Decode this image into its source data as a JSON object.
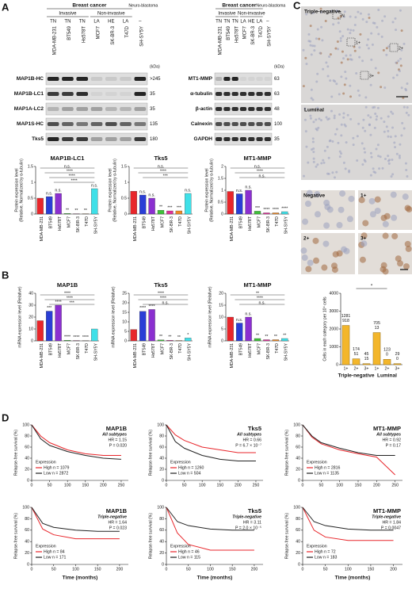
{
  "panel_labels": [
    "A",
    "B",
    "C",
    "D"
  ],
  "blot_left": {
    "group_headers": [
      "Breast cancer",
      "Neuro-blastoma"
    ],
    "subgroup_headers": [
      "Invasive",
      "Non-invasive"
    ],
    "subtypes": [
      "TN",
      "TN",
      "TN",
      "LA",
      "HE",
      "LA",
      "–"
    ],
    "cell_lines": [
      "MDA-MB-231",
      "BT549",
      "Hs578T",
      "MCF7",
      "SK-BR-3",
      "T47D",
      "SH-SY5Y"
    ],
    "kda_label": "(kDa)",
    "bands": [
      {
        "name": "MAP1B-HC",
        "kda": ">245"
      },
      {
        "name": "MAP1B-LC1",
        "kda": "35"
      },
      {
        "name": "MAP1A-LC2",
        "kda": "35"
      },
      {
        "name": "MAP1S-HC",
        "kda": "135"
      },
      {
        "name": "Tks5",
        "kda": "180"
      }
    ]
  },
  "blot_right": {
    "group_headers": [
      "Breast cancer",
      "Neuro-blastoma"
    ],
    "subgroup_headers": [
      "Invasive",
      "Non-invasive"
    ],
    "subtypes": [
      "TN",
      "TN",
      "TN",
      "LA",
      "HE",
      "LA",
      "–"
    ],
    "cell_lines": [
      "MDA-MB-231",
      "BT549",
      "Hs578T",
      "MCF7",
      "SK-BR-3",
      "T47D",
      "SH-SY5Y"
    ],
    "kda_label": "(kDa)",
    "bands": [
      {
        "name": "MT1-MMP",
        "kda": "63"
      },
      {
        "name": "α-tubulin",
        "kda": "63"
      },
      {
        "name": "β-actin",
        "kda": "48"
      },
      {
        "name": "Calnexin",
        "kda": "100"
      },
      {
        "name": "GAPDH",
        "kda": "35"
      }
    ]
  },
  "ihc": {
    "main_labels": [
      "Triple-negative",
      "Luminal"
    ],
    "box_labels": [
      "N",
      "1+",
      "2+",
      "3+"
    ],
    "tile_labels": [
      "Negative",
      "1+",
      "2+",
      "3+"
    ]
  },
  "chart_data": [
    {
      "type": "bar",
      "title": "MAP1B-LC1",
      "ylabel": [
        "Protein expression level",
        "(Relative, Normalized by α-tubulin)"
      ],
      "categories": [
        "MDA-MB-231",
        "BT549",
        "Hs578T",
        "MCF7",
        "SK-BR-3",
        "T47D",
        "SH-SY5Y"
      ],
      "values": [
        0.5,
        0.55,
        0.65,
        0.02,
        0.01,
        0.01,
        0.8
      ],
      "colors": [
        "#e8262b",
        "#2a3ed6",
        "#8b2fd0",
        "#3fc23a",
        "#e0309a",
        "#f08a24",
        "#3fe0e8"
      ],
      "ylim": [
        0,
        1.5
      ],
      "yticks": [
        0,
        0.5,
        1,
        1.5
      ],
      "annotations": [
        null,
        "n.s.",
        "n.s.",
        "**",
        "**",
        "**",
        "n.s."
      ],
      "brackets": [
        "n.s.",
        "****",
        "****",
        "****"
      ]
    },
    {
      "type": "bar",
      "title": "Tks5",
      "ylabel": [
        "Protein expression level",
        "(Relative, Normalized by α-tubulin)"
      ],
      "categories": [
        "MDA-MB-231",
        "BT549",
        "Hs578T",
        "MCF7",
        "SK-BR-3",
        "T47D",
        "SH-SY5Y"
      ],
      "values": [
        0.72,
        0.6,
        0.5,
        0.12,
        0.1,
        0.1,
        0.65
      ],
      "colors": [
        "#e8262b",
        "#2a3ed6",
        "#8b2fd0",
        "#3fc23a",
        "#e0309a",
        "#f08a24",
        "#3fe0e8"
      ],
      "ylim": [
        0,
        1.5
      ],
      "yticks": [
        0,
        0.5,
        1,
        1.5
      ],
      "annotations": [
        null,
        "n.s.",
        "n.s.",
        "**",
        "***",
        "***",
        "n.s."
      ],
      "brackets": [
        "n.s.",
        "****",
        "***"
      ]
    },
    {
      "type": "bar",
      "title": "MT1-MMP",
      "ylabel": [
        "Protein expression level",
        "(Relative, Normalized by α-tubulin)"
      ],
      "categories": [
        "MDA-MB-231",
        "BT549",
        "Hs578T",
        "MCF7",
        "SK-BR-3",
        "T47D",
        "SH-SY5Y"
      ],
      "values": [
        0.95,
        0.85,
        1.0,
        0.12,
        0.05,
        0.05,
        0.1
      ],
      "colors": [
        "#e8262b",
        "#2a3ed6",
        "#8b2fd0",
        "#3fc23a",
        "#e0309a",
        "#f08a24",
        "#3fe0e8"
      ],
      "ylim": [
        0,
        2
      ],
      "yticks": [
        0,
        0.5,
        1,
        1.5,
        2
      ],
      "annotations": [
        null,
        "n.s.",
        "n.s.",
        "***",
        "****",
        "****",
        "****"
      ],
      "brackets": [
        "n.s.",
        "****",
        "n.s."
      ]
    },
    {
      "type": "bar",
      "title": "MAP1B",
      "ylabel": "mRNA expression level (Relative)",
      "categories": [
        "MDA-MB-231",
        "BT549",
        "Hs578T",
        "MCF7",
        "SK-BR-3",
        "T47D",
        "SH-SY5Y"
      ],
      "values": [
        17,
        25,
        30,
        0.5,
        0.3,
        0.2,
        10
      ],
      "colors": [
        "#e8262b",
        "#2a3ed6",
        "#8b2fd0",
        "#3fc23a",
        "#e0309a",
        "#f08a24",
        "#3fe0e8"
      ],
      "ylim": [
        0,
        40
      ],
      "yticks": [
        0,
        10,
        20,
        30,
        40
      ],
      "annotations": [
        null,
        "***",
        "****",
        "****",
        "****",
        "****",
        null
      ],
      "brackets": [
        "****",
        "****",
        "***"
      ]
    },
    {
      "type": "bar",
      "title": "Tks5",
      "ylabel": "mRNA expression level (Relative)",
      "categories": [
        "MDA-MB-231",
        "BT549",
        "Hs578T",
        "MCF7",
        "SK-BR-3",
        "T47D",
        "SH-SY5Y"
      ],
      "values": [
        6,
        15.5,
        16.5,
        0.5,
        0.3,
        0.2,
        1.5
      ],
      "colors": [
        "#e8262b",
        "#2a3ed6",
        "#8b2fd0",
        "#3fc23a",
        "#e0309a",
        "#f08a24",
        "#3fe0e8"
      ],
      "ylim": [
        0,
        25
      ],
      "yticks": [
        0,
        5,
        10,
        15,
        20,
        25
      ],
      "annotations": [
        null,
        "****",
        "****",
        "**",
        "**",
        "**",
        "*"
      ],
      "brackets": [
        "****",
        "****",
        "n.s."
      ]
    },
    {
      "type": "bar",
      "title": "MT1-MMP",
      "ylabel": "mRNA expression level (Relative)",
      "categories": [
        "MDA-MB-231",
        "BT549",
        "Hs578T",
        "MCF7",
        "SK-BR-3",
        "T47D",
        "SH-SY5Y"
      ],
      "values": [
        10,
        7.5,
        10,
        1,
        0.5,
        0.5,
        1
      ],
      "colors": [
        "#e8262b",
        "#2a3ed6",
        "#8b2fd0",
        "#3fc23a",
        "#e0309a",
        "#f08a24",
        "#3fe0e8"
      ],
      "ylim": [
        0,
        20
      ],
      "yticks": [
        0,
        5,
        10,
        15,
        20
      ],
      "annotations": [
        null,
        "n.s.",
        "n.s.",
        "**",
        "**",
        "**",
        "**"
      ],
      "brackets": [
        "**",
        "****",
        "n.s."
      ]
    },
    {
      "type": "bar",
      "ylabel": "Cells in each category per 10⁴ cells",
      "color": "#f3b62b",
      "ylim": [
        0,
        4000
      ],
      "yticks": [
        0,
        1000,
        2000,
        3000,
        4000
      ],
      "brackets": [
        "*"
      ],
      "groups": [
        {
          "name": "Triple-negative",
          "categories": [
            "1+",
            "2+",
            "3+"
          ],
          "values": [
            2200,
            330,
            60
          ],
          "annotations": [
            [
              "1281",
              "918"
            ],
            [
              "174",
              "51"
            ],
            [
              "45",
              "15"
            ]
          ]
        },
        {
          "name": "Luminal",
          "categories": [
            "1+",
            "2+",
            "3+"
          ],
          "values": [
            1800,
            300,
            60
          ],
          "annotations": [
            [
              "705",
              "13"
            ],
            [
              "123",
              "0"
            ],
            [
              "29",
              "0"
            ]
          ]
        }
      ]
    },
    {
      "type": "line",
      "title": "MAP1B",
      "subtitle": "All subtypes",
      "hr": "HR = 1.15",
      "p": "P = 0.020",
      "ylabel": "Relapse-free survival (%)",
      "legend_title": "Expression",
      "x": [
        0,
        25,
        50,
        100,
        150,
        200,
        250
      ],
      "series": [
        {
          "name": "High n = 1079",
          "color": "#e8262b",
          "values": [
            100,
            80,
            68,
            55,
            48,
            45,
            45
          ]
        },
        {
          "name": "Low n = 2872",
          "color": "#222222",
          "values": [
            100,
            75,
            63,
            52,
            45,
            40,
            38
          ]
        }
      ],
      "xlim": [
        0,
        270
      ],
      "xticks": [
        0,
        50,
        100,
        150,
        200,
        250
      ],
      "ylim": [
        0,
        100
      ],
      "yticks": [
        0,
        20,
        40,
        60,
        80,
        100
      ]
    },
    {
      "type": "line",
      "title": "Tks5",
      "subtitle": "All subtypes",
      "hr": "HR = 0.66",
      "p": "P = 6.7 × 10⁻⁷",
      "ylabel": "Relapse-free survival (%)",
      "legend_title": "Expression",
      "x": [
        0,
        25,
        50,
        100,
        150,
        200,
        250
      ],
      "series": [
        {
          "name": "High n = 1260",
          "color": "#e8262b",
          "values": [
            100,
            82,
            72,
            60,
            55,
            50,
            50
          ]
        },
        {
          "name": "Low n = 504",
          "color": "#222222",
          "values": [
            100,
            70,
            58,
            45,
            38,
            35,
            35
          ]
        }
      ],
      "xlim": [
        0,
        270
      ],
      "xticks": [
        0,
        50,
        100,
        150,
        200,
        250
      ],
      "ylim": [
        0,
        100
      ],
      "yticks": [
        0,
        20,
        40,
        60,
        80,
        100
      ]
    },
    {
      "type": "line",
      "title": "MT1-MMP",
      "subtitle": "All subtypes",
      "hr": "HR = 0.92",
      "p": "P = 0.17",
      "ylabel": "Relapse-free survival (%)",
      "legend_title": "Expression",
      "x": [
        0,
        25,
        50,
        100,
        150,
        200,
        250
      ],
      "series": [
        {
          "name": "High n = 2816",
          "color": "#e8262b",
          "values": [
            100,
            78,
            66,
            55,
            48,
            42,
            10
          ]
        },
        {
          "name": "Low n = 1135",
          "color": "#222222",
          "values": [
            100,
            80,
            68,
            58,
            50,
            45,
            45
          ]
        }
      ],
      "xlim": [
        0,
        270
      ],
      "xticks": [
        0,
        50,
        100,
        150,
        200,
        250
      ],
      "ylim": [
        0,
        100
      ],
      "yticks": [
        0,
        20,
        40,
        60,
        80,
        100
      ]
    },
    {
      "type": "line",
      "title": "MAP1B",
      "subtitle": "Triple-negative",
      "hr": "HR = 1.64",
      "p": "P = 0.023",
      "ylabel": "Relapse-free survival (%)",
      "xlabel": "Time (months)",
      "legend_title": "Expression",
      "x": [
        0,
        25,
        50,
        100,
        150,
        200
      ],
      "series": [
        {
          "name": "High n = 84",
          "color": "#e8262b",
          "values": [
            100,
            62,
            52,
            45,
            45,
            45
          ]
        },
        {
          "name": "Low n = 171",
          "color": "#222222",
          "values": [
            100,
            72,
            65,
            60,
            58,
            58
          ]
        }
      ],
      "xlim": [
        0,
        220
      ],
      "xticks": [
        0,
        50,
        100,
        150,
        200
      ],
      "ylim": [
        0,
        100
      ],
      "yticks": [
        0,
        20,
        40,
        60,
        80,
        100
      ]
    },
    {
      "type": "line",
      "title": "Tks5",
      "subtitle": "Triple-negative",
      "hr": "HR = 3.11",
      "p": "P = 2.0 × 10⁻⁵",
      "ylabel": "Relapse-free survival (%)",
      "xlabel": "Time (months)",
      "legend_title": "Expression",
      "x": [
        0,
        25,
        50,
        100,
        150,
        200
      ],
      "series": [
        {
          "name": "High n = 46",
          "color": "#e8262b",
          "values": [
            100,
            55,
            35,
            25,
            25,
            25
          ]
        },
        {
          "name": "Low n = 115",
          "color": "#222222",
          "values": [
            100,
            75,
            68,
            62,
            60,
            60
          ]
        }
      ],
      "xlim": [
        0,
        220
      ],
      "xticks": [
        0,
        50,
        100,
        150,
        200
      ],
      "ylim": [
        0,
        100
      ],
      "yticks": [
        0,
        20,
        40,
        60,
        80,
        100
      ]
    },
    {
      "type": "line",
      "title": "MT1-MMP",
      "subtitle": "Triple-negative",
      "hr": "HR = 1.84",
      "p": "P = 0.0047",
      "ylabel": "Relapse-free survival (%)",
      "xlabel": "Time (months)",
      "legend_title": "Expression",
      "x": [
        0,
        25,
        50,
        100,
        150,
        200
      ],
      "series": [
        {
          "name": "High n = 72",
          "color": "#e8262b",
          "values": [
            100,
            60,
            48,
            42,
            42,
            42
          ]
        },
        {
          "name": "Low n = 183",
          "color": "#222222",
          "values": [
            100,
            75,
            68,
            62,
            60,
            60
          ]
        }
      ],
      "xlim": [
        0,
        220
      ],
      "xticks": [
        0,
        50,
        100,
        150,
        200
      ],
      "ylim": [
        0,
        100
      ],
      "yticks": [
        0,
        20,
        40,
        60,
        80,
        100
      ]
    }
  ]
}
